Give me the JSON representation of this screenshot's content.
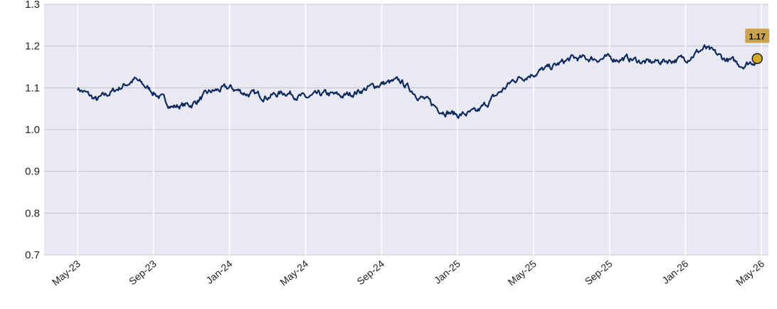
{
  "chart_data": {
    "type": "line",
    "title": "",
    "xlabel": "",
    "ylabel": "",
    "ylim": [
      0.7,
      1.3
    ],
    "yticks": [
      "0.7",
      "0.8",
      "0.9",
      "1.0",
      "1.1",
      "1.2",
      "1.3"
    ],
    "xticks": [
      "May-23",
      "Sep-23",
      "Jan-24",
      "May-24",
      "Sep-24",
      "Jan-25",
      "May-25",
      "Sep-25",
      "Jan-26",
      "May-26"
    ],
    "grid": true,
    "colors": {
      "plot_background": "#e9e9f3",
      "line": "#0f2b5e",
      "marker": "#d4a62a",
      "badge": "#c9a24e"
    },
    "last_value_label": "1.17",
    "series": [
      {
        "x": [
          "May-23",
          "Jun-23",
          "Jul-23",
          "Aug-23",
          "Sep-23",
          "Oct-23",
          "Nov-23",
          "Dec-23",
          "Jan-24",
          "Feb-24",
          "Mar-24",
          "Apr-24",
          "May-24",
          "Jun-24",
          "Jul-24",
          "Aug-24",
          "Sep-24",
          "Oct-24",
          "Nov-24",
          "Dec-24",
          "Jan-25",
          "Feb-25",
          "Mar-25",
          "Apr-25",
          "May-25",
          "Jun-25",
          "Jul-25",
          "Aug-25",
          "Sep-25",
          "Oct-25",
          "Nov-25",
          "Dec-25",
          "Jan-26",
          "Feb-26",
          "Mar-26",
          "Apr-26",
          "May-26"
        ],
        "values": [
          1.1,
          1.07,
          1.095,
          1.12,
          1.09,
          1.055,
          1.06,
          1.09,
          1.1,
          1.085,
          1.08,
          1.09,
          1.075,
          1.085,
          1.08,
          1.095,
          1.11,
          1.115,
          1.08,
          1.05,
          1.035,
          1.04,
          1.08,
          1.12,
          1.135,
          1.15,
          1.17,
          1.17,
          1.17,
          1.17,
          1.16,
          1.165,
          1.17,
          1.195,
          1.17,
          1.155,
          1.17
        ]
      }
    ]
  }
}
